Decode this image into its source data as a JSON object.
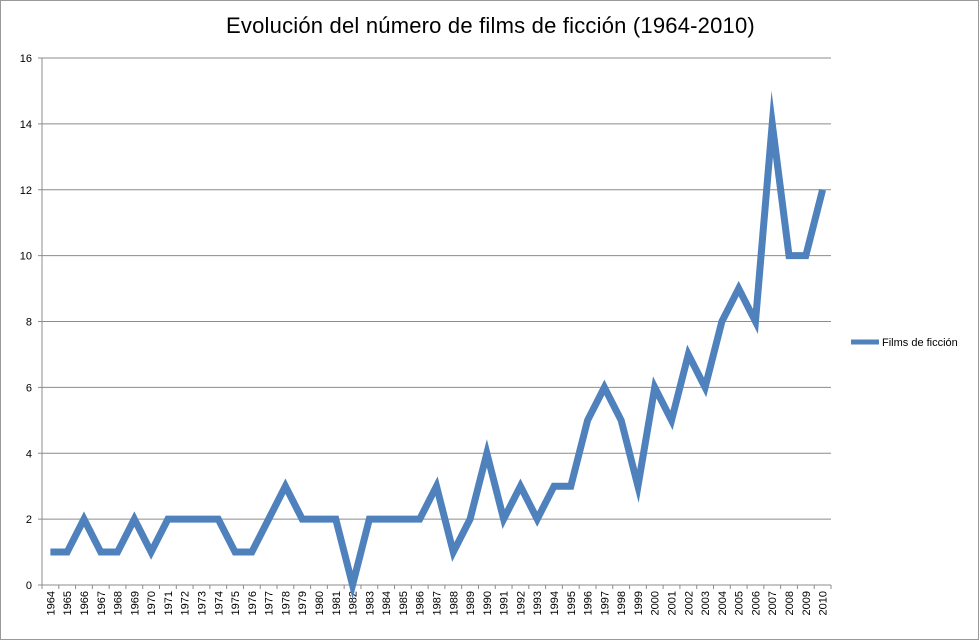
{
  "chart_data": {
    "type": "line",
    "title": "Evolución del número de films de ficción (1964-2010)",
    "xlabel": "",
    "ylabel": "",
    "ylim": [
      0,
      16
    ],
    "yticks": [
      0,
      2,
      4,
      6,
      8,
      10,
      12,
      14,
      16
    ],
    "grid": true,
    "legend_position": "right",
    "categories": [
      "1964",
      "1965",
      "1966",
      "1967",
      "1968",
      "1969",
      "1970",
      "1971",
      "1972",
      "1973",
      "1974",
      "1975",
      "1976",
      "1977",
      "1978",
      "1979",
      "1980",
      "1981",
      "1982",
      "1983",
      "1984",
      "1985",
      "1986",
      "1987",
      "1988",
      "1989",
      "1990",
      "1991",
      "1992",
      "1993",
      "1994",
      "1995",
      "1996",
      "1997",
      "1998",
      "1999",
      "2000",
      "2001",
      "2002",
      "2003",
      "2004",
      "2005",
      "2006",
      "2007",
      "2008",
      "2009",
      "2010"
    ],
    "series": [
      {
        "name": "Films de ficción",
        "color": "#4f81bd",
        "values": [
          1,
          1,
          2,
          1,
          1,
          2,
          1,
          2,
          2,
          2,
          2,
          1,
          1,
          2,
          3,
          2,
          2,
          2,
          0,
          2,
          2,
          2,
          2,
          3,
          1,
          2,
          4,
          2,
          3,
          2,
          3,
          3,
          5,
          6,
          5,
          3,
          6,
          5,
          7,
          6,
          8,
          9,
          8,
          14,
          10,
          10,
          12
        ]
      }
    ]
  }
}
